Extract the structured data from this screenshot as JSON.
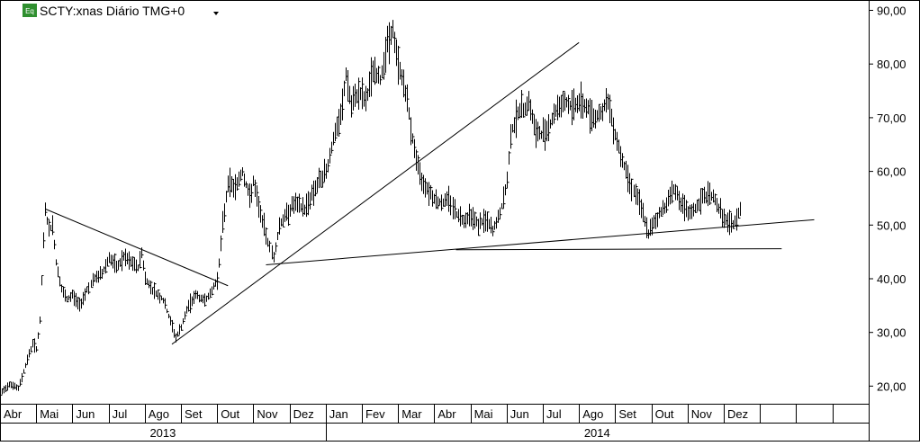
{
  "chart_data": {
    "type": "line",
    "title": "SCTY:xnas Diário TMG+0",
    "title_icon": "Eq",
    "dropdown_icon": "triangle-down-icon",
    "ylim": [
      15,
      92
    ],
    "yticks": [
      20,
      30,
      40,
      50,
      60,
      70,
      80,
      90
    ],
    "ytick_labels": [
      "20,00",
      "30,00",
      "40,00",
      "50,00",
      "60,00",
      "70,00",
      "80,00",
      "90,00"
    ],
    "months": [
      "Abr",
      "Mai",
      "Jun",
      "Jul",
      "Ago",
      "Set",
      "Out",
      "Nov",
      "Dez",
      "Jan",
      "Fev",
      "Mar",
      "Abr",
      "Mai",
      "Jun",
      "Jul",
      "Ago",
      "Set",
      "Out",
      "Nov",
      "Dez"
    ],
    "years": [
      "2013",
      "2014"
    ],
    "year_month_span": [
      [
        0,
        9
      ],
      [
        9,
        24
      ]
    ],
    "visible_slots": 24,
    "grid": false,
    "bar_color": "#000000",
    "series": [
      {
        "style": "price-bars",
        "points": [
          [
            0.0,
            18.5
          ],
          [
            0.25,
            20.5
          ],
          [
            0.5,
            19.5
          ],
          [
            0.75,
            25
          ],
          [
            0.9,
            28
          ],
          [
            1.0,
            27
          ],
          [
            1.1,
            32
          ],
          [
            1.2,
            47
          ],
          [
            1.25,
            53
          ],
          [
            1.35,
            49
          ],
          [
            1.45,
            50
          ],
          [
            1.55,
            43
          ],
          [
            1.7,
            38
          ],
          [
            1.85,
            36
          ],
          [
            2.0,
            37
          ],
          [
            2.2,
            35
          ],
          [
            2.4,
            38
          ],
          [
            2.6,
            40
          ],
          [
            2.8,
            41
          ],
          [
            3.0,
            44
          ],
          [
            3.2,
            42
          ],
          [
            3.4,
            44
          ],
          [
            3.6,
            43
          ],
          [
            3.8,
            42
          ],
          [
            3.9,
            45
          ],
          [
            4.0,
            40
          ],
          [
            4.2,
            38
          ],
          [
            4.5,
            36
          ],
          [
            4.7,
            32
          ],
          [
            4.85,
            29
          ],
          [
            5.0,
            31
          ],
          [
            5.2,
            35
          ],
          [
            5.4,
            37
          ],
          [
            5.6,
            36
          ],
          [
            5.8,
            37
          ],
          [
            6.0,
            40
          ],
          [
            6.05,
            43
          ],
          [
            6.15,
            50
          ],
          [
            6.3,
            58
          ],
          [
            6.5,
            57
          ],
          [
            6.7,
            60
          ],
          [
            6.9,
            55
          ],
          [
            7.0,
            58
          ],
          [
            7.2,
            52
          ],
          [
            7.4,
            47
          ],
          [
            7.55,
            44
          ],
          [
            7.7,
            50
          ],
          [
            7.9,
            52
          ],
          [
            8.1,
            54
          ],
          [
            8.4,
            53
          ],
          [
            8.7,
            57
          ],
          [
            9.0,
            60
          ],
          [
            9.2,
            66
          ],
          [
            9.4,
            70
          ],
          [
            9.55,
            78
          ],
          [
            9.7,
            72
          ],
          [
            9.9,
            75
          ],
          [
            10.1,
            73
          ],
          [
            10.3,
            79
          ],
          [
            10.5,
            77
          ],
          [
            10.7,
            84
          ],
          [
            10.85,
            86
          ],
          [
            11.0,
            80
          ],
          [
            11.2,
            75
          ],
          [
            11.4,
            66
          ],
          [
            11.6,
            59
          ],
          [
            11.8,
            57
          ],
          [
            12.0,
            55
          ],
          [
            12.2,
            54
          ],
          [
            12.4,
            55
          ],
          [
            12.6,
            52
          ],
          [
            12.8,
            51
          ],
          [
            13.0,
            52
          ],
          [
            13.2,
            50
          ],
          [
            13.4,
            51
          ],
          [
            13.6,
            49
          ],
          [
            13.8,
            52
          ],
          [
            14.0,
            58
          ],
          [
            14.1,
            67
          ],
          [
            14.3,
            71
          ],
          [
            14.5,
            72
          ],
          [
            14.6,
            73
          ],
          [
            14.8,
            67
          ],
          [
            15.0,
            67
          ],
          [
            15.2,
            69
          ],
          [
            15.4,
            72
          ],
          [
            15.6,
            73
          ],
          [
            15.8,
            72
          ],
          [
            16.0,
            73
          ],
          [
            16.2,
            72
          ],
          [
            16.4,
            70
          ],
          [
            16.6,
            71
          ],
          [
            16.8,
            73
          ],
          [
            17.0,
            67
          ],
          [
            17.2,
            62
          ],
          [
            17.4,
            58
          ],
          [
            17.6,
            55
          ],
          [
            17.8,
            51
          ],
          [
            17.9,
            48
          ],
          [
            18.0,
            50
          ],
          [
            18.2,
            52
          ],
          [
            18.4,
            54
          ],
          [
            18.6,
            57
          ],
          [
            18.8,
            54
          ],
          [
            19.0,
            52
          ],
          [
            19.2,
            53
          ],
          [
            19.4,
            55
          ],
          [
            19.6,
            56
          ],
          [
            19.8,
            54
          ],
          [
            20.0,
            51
          ],
          [
            20.2,
            50
          ],
          [
            20.35,
            51
          ],
          [
            20.45,
            53
          ]
        ]
      },
      {
        "style": "trendline",
        "points": [
          [
            1.25,
            53
          ],
          [
            6.3,
            38.7
          ]
        ]
      },
      {
        "style": "trendline",
        "points": [
          [
            4.75,
            27.8
          ],
          [
            16.0,
            84
          ]
        ]
      },
      {
        "style": "trendline",
        "points": [
          [
            7.35,
            42.6
          ],
          [
            22.5,
            51
          ]
        ]
      },
      {
        "style": "trendline",
        "points": [
          [
            12.6,
            45.4
          ],
          [
            21.6,
            45.6
          ]
        ]
      }
    ]
  }
}
